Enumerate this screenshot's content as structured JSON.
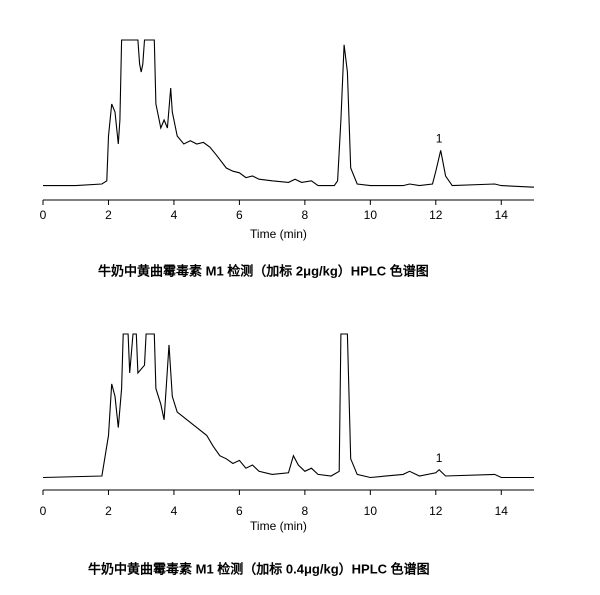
{
  "chart_data": [
    {
      "type": "line",
      "xlabel": "Time (min)",
      "caption": "牛奶中黄曲霉毒素 M1 检测（加标 2μg/kg）HPLC 色谱图",
      "xlim": [
        0,
        15
      ],
      "xticks": [
        0,
        2,
        4,
        6,
        8,
        10,
        12,
        14
      ],
      "ylim": [
        0,
        100
      ],
      "color": "#000000",
      "x": [
        0,
        1,
        1.8,
        1.95,
        2.0,
        2.1,
        2.2,
        2.3,
        2.35,
        2.4,
        2.9,
        2.95,
        3.0,
        3.05,
        3.1,
        3.4,
        3.45,
        3.6,
        3.7,
        3.8,
        3.9,
        3.95,
        4.1,
        4.3,
        4.5,
        4.7,
        4.9,
        5.1,
        5.3,
        5.6,
        5.8,
        6.0,
        6.2,
        6.4,
        6.6,
        7.0,
        7.5,
        7.7,
        7.9,
        8.2,
        8.4,
        8.9,
        9.0,
        9.1,
        9.2,
        9.3,
        9.4,
        9.6,
        10,
        11,
        11.2,
        11.5,
        11.9,
        12.0,
        12.15,
        12.3,
        12.5,
        13.8,
        14,
        15
      ],
      "values": [
        9,
        9,
        10,
        12,
        40,
        60,
        55,
        35,
        50,
        100,
        100,
        85,
        80,
        85,
        100,
        100,
        60,
        45,
        50,
        45,
        70,
        55,
        40,
        35,
        37,
        35,
        36,
        33,
        28,
        20,
        18,
        17,
        14,
        15,
        13,
        12,
        11,
        13,
        11,
        12,
        9,
        9,
        12,
        50,
        97,
        80,
        20,
        10,
        9,
        9,
        10,
        9,
        10,
        18,
        31,
        15,
        9,
        10,
        9,
        8
      ],
      "annotations": [
        {
          "text": "1",
          "x": 12.1,
          "y": 38
        }
      ]
    },
    {
      "type": "line",
      "xlabel": "Time (min)",
      "caption": "牛奶中黄曲霉毒素 M1 检测（加标 0.4μg/kg）HPLC 色谱图",
      "xlim": [
        0,
        15
      ],
      "xticks": [
        0,
        2,
        4,
        6,
        8,
        10,
        12,
        14
      ],
      "ylim": [
        0,
        100
      ],
      "color": "#000000",
      "x": [
        0,
        1.8,
        2.0,
        2.1,
        2.2,
        2.3,
        2.4,
        2.45,
        2.6,
        2.65,
        2.75,
        2.85,
        2.9,
        3.1,
        3.15,
        3.4,
        3.45,
        3.6,
        3.7,
        3.85,
        3.95,
        4.1,
        4.4,
        4.7,
        5.0,
        5.2,
        5.4,
        5.6,
        5.8,
        6.0,
        6.2,
        6.4,
        6.6,
        7.0,
        7.5,
        7.65,
        7.8,
        8.0,
        8.2,
        8.4,
        8.8,
        9.05,
        9.1,
        9.3,
        9.4,
        9.6,
        10,
        11,
        11.2,
        11.5,
        12,
        12.1,
        12.3,
        13.8,
        14,
        15
      ],
      "values": [
        8,
        9,
        35,
        68,
        60,
        40,
        65,
        100,
        100,
        75,
        100,
        100,
        75,
        80,
        100,
        100,
        65,
        55,
        45,
        93,
        60,
        50,
        45,
        40,
        35,
        28,
        22,
        20,
        17,
        19,
        14,
        16,
        12,
        10,
        11,
        22,
        16,
        12,
        14,
        10,
        9,
        12,
        100,
        100,
        20,
        10,
        8,
        10,
        12,
        9,
        11,
        13,
        9,
        10,
        8,
        8
      ],
      "annotations": [
        {
          "text": "1",
          "x": 12.1,
          "y": 20
        }
      ]
    }
  ]
}
